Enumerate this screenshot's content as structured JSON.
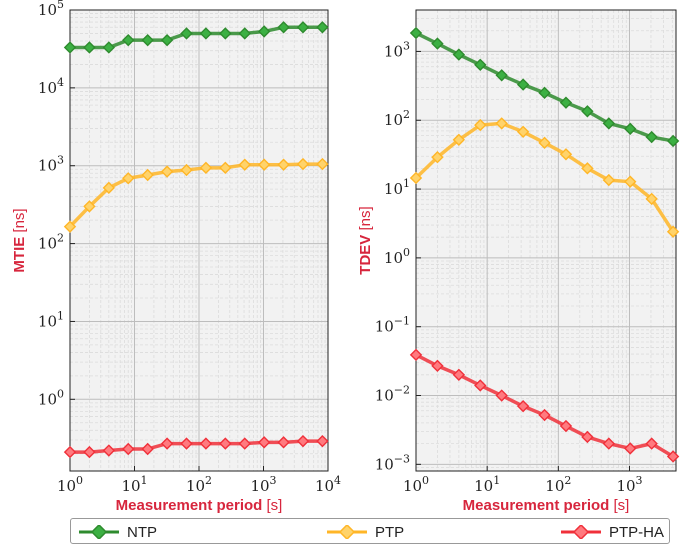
{
  "chart_data": [
    {
      "type": "line",
      "xlabel_bold": "Measurement period",
      "xlabel_unit": "[s]",
      "ylabel_bold": "MTIE",
      "ylabel_unit": "[ns]",
      "xscale": "log",
      "yscale": "log",
      "xlim": [
        1,
        10000
      ],
      "ylim": [
        0.12,
        100000
      ],
      "x_ticks": [
        1,
        10,
        100,
        1000,
        10000
      ],
      "y_ticks": [
        1,
        10,
        100,
        1000,
        10000,
        100000
      ],
      "grid": true,
      "x": [
        1,
        2,
        4,
        8,
        16,
        32,
        64,
        128,
        256,
        512,
        1024,
        2048,
        4096,
        8192
      ],
      "series": [
        {
          "name": "NTP",
          "color": "#2e8b2e",
          "marker_fill": "#3cb043",
          "values": [
            33000,
            33000,
            33000,
            41000,
            41000,
            41000,
            50000,
            50000,
            50000,
            50000,
            53000,
            60000,
            60000,
            60000
          ]
        },
        {
          "name": "PTP",
          "color": "#ffb627",
          "marker_fill": "#ffd36b",
          "values": [
            165,
            300,
            520,
            690,
            760,
            840,
            880,
            940,
            940,
            1030,
            1030,
            1030,
            1050,
            1050
          ]
        },
        {
          "name": "PTP-HA",
          "color": "#f0303a",
          "marker_fill": "#ff7a7f",
          "values": [
            0.21,
            0.21,
            0.22,
            0.23,
            0.23,
            0.27,
            0.27,
            0.27,
            0.27,
            0.27,
            0.28,
            0.28,
            0.29,
            0.29
          ]
        }
      ]
    },
    {
      "type": "line",
      "xlabel_bold": "Measurement period",
      "xlabel_unit": "[s]",
      "ylabel_bold": "TDEV",
      "ylabel_unit": "[ns]",
      "xscale": "log",
      "yscale": "log",
      "xlim": [
        1,
        4500
      ],
      "ylim": [
        0.0008,
        4000
      ],
      "x_ticks": [
        1,
        10,
        100,
        1000
      ],
      "y_ticks": [
        0.001,
        0.01,
        0.1,
        1,
        10,
        100,
        1000
      ],
      "grid": true,
      "x": [
        1,
        2,
        4,
        8,
        16,
        32,
        64,
        128,
        256,
        512,
        1024,
        2048,
        4096
      ],
      "series": [
        {
          "name": "NTP",
          "color": "#2e8b2e",
          "marker_fill": "#3cb043",
          "values": [
            1850,
            1300,
            900,
            640,
            450,
            330,
            250,
            180,
            135,
            90,
            75,
            57,
            50
          ]
        },
        {
          "name": "PTP",
          "color": "#ffb627",
          "marker_fill": "#ffd36b",
          "values": [
            14.5,
            29,
            52,
            85,
            90,
            68,
            47,
            32,
            20,
            13.5,
            12.8,
            7.2,
            2.4
          ]
        },
        {
          "name": "PTP-HA",
          "color": "#f0303a",
          "marker_fill": "#ff7a7f",
          "values": [
            0.039,
            0.027,
            0.02,
            0.014,
            0.01,
            0.007,
            0.0052,
            0.0036,
            0.0025,
            0.002,
            0.0017,
            0.002,
            0.0013
          ]
        }
      ]
    }
  ],
  "legend": {
    "items": [
      {
        "label": "NTP",
        "color": "#2e8b2e",
        "marker_fill": "#3cb043"
      },
      {
        "label": "PTP",
        "color": "#ffb627",
        "marker_fill": "#ffd36b"
      },
      {
        "label": "PTP-HA",
        "color": "#f0303a",
        "marker_fill": "#ff7a7f"
      }
    ]
  }
}
